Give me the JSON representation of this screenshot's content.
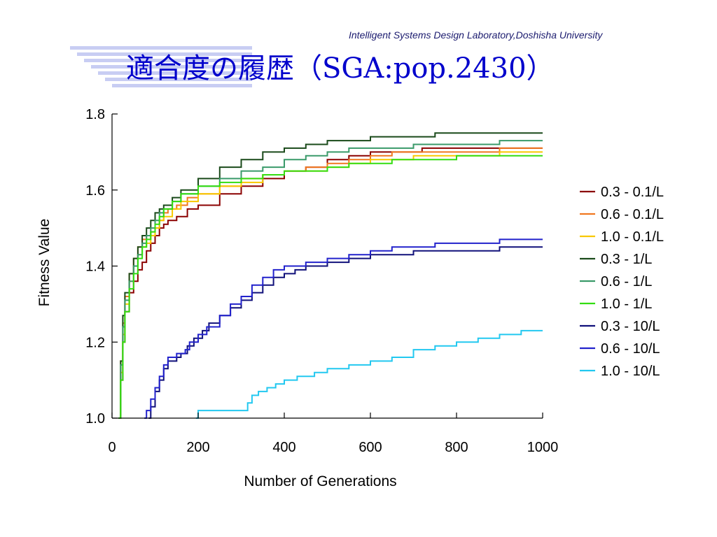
{
  "header": {
    "lab": "Intelligent Systems Design Laboratory,Doshisha University",
    "title": "適合度の履歴（SGA:pop.2430）"
  },
  "chart_data": {
    "type": "line",
    "xlabel": "Number of Generations",
    "ylabel": "Fitness Value",
    "xlim": [
      0,
      1000
    ],
    "ylim": [
      1.0,
      1.8
    ],
    "xticks": [
      "0",
      "200",
      "400",
      "600",
      "800",
      "1000"
    ],
    "yticks": [
      "1.0",
      "1.2",
      "1.4",
      "1.6",
      "1.8"
    ],
    "legend_position": "right",
    "series": [
      {
        "name": "0.3 - 0.1/L",
        "color": "#8b0000",
        "points": [
          [
            15,
            1.0
          ],
          [
            20,
            1.1
          ],
          [
            25,
            1.2
          ],
          [
            30,
            1.28
          ],
          [
            40,
            1.33
          ],
          [
            50,
            1.36
          ],
          [
            60,
            1.39
          ],
          [
            70,
            1.41
          ],
          [
            80,
            1.44
          ],
          [
            90,
            1.46
          ],
          [
            100,
            1.48
          ],
          [
            110,
            1.5
          ],
          [
            120,
            1.51
          ],
          [
            130,
            1.52
          ],
          [
            150,
            1.53
          ],
          [
            175,
            1.55
          ],
          [
            200,
            1.56
          ],
          [
            250,
            1.59
          ],
          [
            300,
            1.61
          ],
          [
            350,
            1.63
          ],
          [
            400,
            1.65
          ],
          [
            450,
            1.66
          ],
          [
            500,
            1.68
          ],
          [
            550,
            1.69
          ],
          [
            600,
            1.7
          ],
          [
            650,
            1.7
          ],
          [
            720,
            1.71
          ],
          [
            800,
            1.71
          ],
          [
            900,
            1.71
          ],
          [
            1000,
            1.71
          ]
        ]
      },
      {
        "name": "0.6 - 0.1/L",
        "color": "#f07820",
        "points": [
          [
            15,
            1.0
          ],
          [
            20,
            1.15
          ],
          [
            25,
            1.25
          ],
          [
            30,
            1.32
          ],
          [
            40,
            1.38
          ],
          [
            50,
            1.42
          ],
          [
            60,
            1.45
          ],
          [
            70,
            1.47
          ],
          [
            80,
            1.48
          ],
          [
            90,
            1.49
          ],
          [
            100,
            1.5
          ],
          [
            110,
            1.52
          ],
          [
            120,
            1.54
          ],
          [
            130,
            1.55
          ],
          [
            150,
            1.56
          ],
          [
            175,
            1.58
          ],
          [
            200,
            1.59
          ],
          [
            250,
            1.61
          ],
          [
            300,
            1.63
          ],
          [
            350,
            1.64
          ],
          [
            400,
            1.65
          ],
          [
            450,
            1.66
          ],
          [
            500,
            1.67
          ],
          [
            550,
            1.68
          ],
          [
            600,
            1.69
          ],
          [
            650,
            1.7
          ],
          [
            700,
            1.7
          ],
          [
            800,
            1.7
          ],
          [
            900,
            1.71
          ],
          [
            1000,
            1.71
          ]
        ]
      },
      {
        "name": "1.0 - 0.1/L",
        "color": "#f8c800",
        "points": [
          [
            15,
            1.0
          ],
          [
            20,
            1.12
          ],
          [
            25,
            1.22
          ],
          [
            30,
            1.3
          ],
          [
            40,
            1.36
          ],
          [
            50,
            1.4
          ],
          [
            60,
            1.43
          ],
          [
            70,
            1.45
          ],
          [
            80,
            1.46
          ],
          [
            90,
            1.48
          ],
          [
            100,
            1.5
          ],
          [
            110,
            1.52
          ],
          [
            120,
            1.53
          ],
          [
            140,
            1.55
          ],
          [
            160,
            1.57
          ],
          [
            200,
            1.59
          ],
          [
            250,
            1.61
          ],
          [
            300,
            1.62
          ],
          [
            350,
            1.64
          ],
          [
            400,
            1.65
          ],
          [
            450,
            1.65
          ],
          [
            500,
            1.66
          ],
          [
            550,
            1.67
          ],
          [
            600,
            1.68
          ],
          [
            650,
            1.68
          ],
          [
            700,
            1.69
          ],
          [
            800,
            1.69
          ],
          [
            900,
            1.7
          ],
          [
            950,
            1.7
          ],
          [
            1000,
            1.7
          ]
        ]
      },
      {
        "name": "0.3 - 1/L",
        "color": "#1a4a1a",
        "points": [
          [
            15,
            1.0
          ],
          [
            20,
            1.15
          ],
          [
            25,
            1.27
          ],
          [
            30,
            1.33
          ],
          [
            40,
            1.38
          ],
          [
            50,
            1.42
          ],
          [
            60,
            1.45
          ],
          [
            70,
            1.48
          ],
          [
            80,
            1.5
          ],
          [
            90,
            1.52
          ],
          [
            100,
            1.54
          ],
          [
            110,
            1.55
          ],
          [
            120,
            1.56
          ],
          [
            140,
            1.58
          ],
          [
            160,
            1.6
          ],
          [
            200,
            1.63
          ],
          [
            250,
            1.66
          ],
          [
            300,
            1.68
          ],
          [
            350,
            1.7
          ],
          [
            400,
            1.71
          ],
          [
            450,
            1.72
          ],
          [
            500,
            1.73
          ],
          [
            600,
            1.74
          ],
          [
            700,
            1.74
          ],
          [
            750,
            1.75
          ],
          [
            850,
            1.75
          ],
          [
            1000,
            1.75
          ]
        ]
      },
      {
        "name": "0.6 - 1/L",
        "color": "#3a9a6a",
        "points": [
          [
            15,
            1.0
          ],
          [
            20,
            1.14
          ],
          [
            25,
            1.24
          ],
          [
            30,
            1.31
          ],
          [
            40,
            1.36
          ],
          [
            50,
            1.4
          ],
          [
            60,
            1.43
          ],
          [
            70,
            1.46
          ],
          [
            80,
            1.48
          ],
          [
            90,
            1.5
          ],
          [
            100,
            1.52
          ],
          [
            110,
            1.54
          ],
          [
            120,
            1.55
          ],
          [
            140,
            1.57
          ],
          [
            160,
            1.59
          ],
          [
            200,
            1.61
          ],
          [
            250,
            1.63
          ],
          [
            300,
            1.65
          ],
          [
            350,
            1.66
          ],
          [
            400,
            1.68
          ],
          [
            450,
            1.69
          ],
          [
            500,
            1.7
          ],
          [
            550,
            1.71
          ],
          [
            600,
            1.71
          ],
          [
            700,
            1.72
          ],
          [
            800,
            1.72
          ],
          [
            900,
            1.73
          ],
          [
            1000,
            1.73
          ]
        ]
      },
      {
        "name": "1.0 - 1/L",
        "color": "#33dd11",
        "points": [
          [
            15,
            1.0
          ],
          [
            20,
            1.1
          ],
          [
            25,
            1.2
          ],
          [
            30,
            1.28
          ],
          [
            40,
            1.34
          ],
          [
            50,
            1.38
          ],
          [
            60,
            1.42
          ],
          [
            70,
            1.45
          ],
          [
            80,
            1.47
          ],
          [
            90,
            1.49
          ],
          [
            100,
            1.51
          ],
          [
            110,
            1.53
          ],
          [
            120,
            1.55
          ],
          [
            140,
            1.57
          ],
          [
            160,
            1.59
          ],
          [
            200,
            1.61
          ],
          [
            250,
            1.62
          ],
          [
            300,
            1.63
          ],
          [
            350,
            1.64
          ],
          [
            400,
            1.65
          ],
          [
            450,
            1.65
          ],
          [
            500,
            1.66
          ],
          [
            550,
            1.67
          ],
          [
            600,
            1.67
          ],
          [
            650,
            1.68
          ],
          [
            700,
            1.68
          ],
          [
            800,
            1.69
          ],
          [
            900,
            1.69
          ],
          [
            1000,
            1.69
          ]
        ]
      },
      {
        "name": "0.3 - 10/L",
        "color": "#10107a",
        "points": [
          [
            85,
            1.0
          ],
          [
            90,
            1.03
          ],
          [
            100,
            1.07
          ],
          [
            110,
            1.1
          ],
          [
            120,
            1.13
          ],
          [
            130,
            1.15
          ],
          [
            150,
            1.16
          ],
          [
            160,
            1.17
          ],
          [
            175,
            1.19
          ],
          [
            190,
            1.21
          ],
          [
            210,
            1.23
          ],
          [
            225,
            1.25
          ],
          [
            250,
            1.27
          ],
          [
            275,
            1.29
          ],
          [
            300,
            1.31
          ],
          [
            325,
            1.33
          ],
          [
            350,
            1.35
          ],
          [
            375,
            1.37
          ],
          [
            400,
            1.38
          ],
          [
            425,
            1.39
          ],
          [
            450,
            1.4
          ],
          [
            500,
            1.41
          ],
          [
            550,
            1.42
          ],
          [
            600,
            1.43
          ],
          [
            650,
            1.43
          ],
          [
            700,
            1.44
          ],
          [
            800,
            1.44
          ],
          [
            900,
            1.45
          ],
          [
            1000,
            1.45
          ]
        ]
      },
      {
        "name": "0.6 - 10/L",
        "color": "#2222cc",
        "points": [
          [
            75,
            1.0
          ],
          [
            80,
            1.02
          ],
          [
            90,
            1.05
          ],
          [
            100,
            1.08
          ],
          [
            110,
            1.11
          ],
          [
            120,
            1.14
          ],
          [
            130,
            1.16
          ],
          [
            150,
            1.17
          ],
          [
            170,
            1.18
          ],
          [
            180,
            1.2
          ],
          [
            200,
            1.22
          ],
          [
            220,
            1.24
          ],
          [
            250,
            1.27
          ],
          [
            275,
            1.3
          ],
          [
            300,
            1.32
          ],
          [
            325,
            1.35
          ],
          [
            350,
            1.37
          ],
          [
            375,
            1.39
          ],
          [
            400,
            1.4
          ],
          [
            450,
            1.41
          ],
          [
            500,
            1.42
          ],
          [
            550,
            1.43
          ],
          [
            600,
            1.44
          ],
          [
            650,
            1.45
          ],
          [
            700,
            1.45
          ],
          [
            750,
            1.46
          ],
          [
            800,
            1.46
          ],
          [
            900,
            1.47
          ],
          [
            950,
            1.47
          ],
          [
            1000,
            1.47
          ]
        ]
      },
      {
        "name": "1.0 - 10/L",
        "color": "#22c8f0",
        "points": [
          [
            195,
            1.0
          ],
          [
            200,
            1.02
          ],
          [
            250,
            1.02
          ],
          [
            300,
            1.02
          ],
          [
            315,
            1.04
          ],
          [
            325,
            1.06
          ],
          [
            340,
            1.07
          ],
          [
            360,
            1.08
          ],
          [
            380,
            1.09
          ],
          [
            400,
            1.1
          ],
          [
            430,
            1.11
          ],
          [
            470,
            1.12
          ],
          [
            500,
            1.13
          ],
          [
            550,
            1.14
          ],
          [
            600,
            1.15
          ],
          [
            650,
            1.16
          ],
          [
            700,
            1.18
          ],
          [
            750,
            1.19
          ],
          [
            800,
            1.2
          ],
          [
            850,
            1.21
          ],
          [
            900,
            1.22
          ],
          [
            950,
            1.23
          ],
          [
            1000,
            1.23
          ]
        ]
      }
    ]
  }
}
